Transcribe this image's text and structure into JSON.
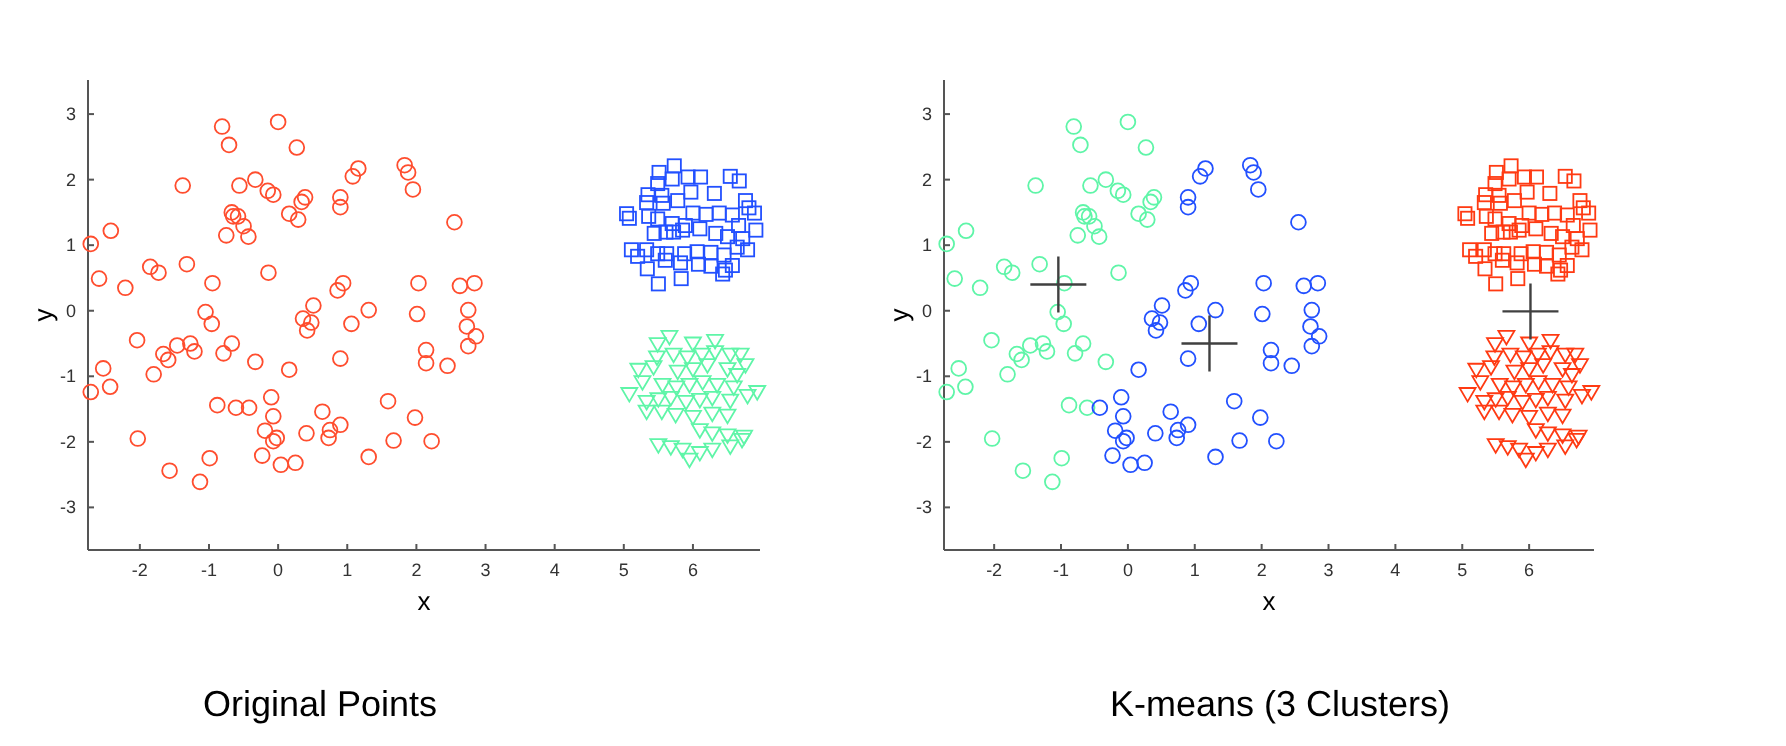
{
  "chart_data": [
    {
      "type": "scatter",
      "title": "Original Points",
      "xlabel": "x",
      "ylabel": "y",
      "xlim": [
        -2.75,
        6.97
      ],
      "ylim": [
        -3.65,
        3.52
      ],
      "xticks": [
        -2,
        -1,
        0,
        1,
        2,
        3,
        4,
        5,
        6
      ],
      "yticks": [
        -3,
        -2,
        -1,
        0,
        1,
        2,
        3
      ],
      "grid": false,
      "series": [
        {
          "marker": "circle",
          "color": "#ff4d2e",
          "x": [
            -0.81,
            0,
            -0.71,
            0.27,
            -1.38,
            -0.56,
            -0.33,
            -0.15,
            -0.07,
            0.39,
            0.34,
            0.9,
            0.9,
            1.08,
            1.16,
            1.83,
            1.88,
            1.95,
            2.55,
            0.16,
            0.29,
            -0.67,
            -0.65,
            -0.58,
            -0.5,
            -0.43,
            -0.75,
            -2.71,
            -2.42,
            -2.59,
            -2.21,
            -1.85,
            -1.73,
            -1.32,
            -0.95,
            -0.14,
            0.86,
            0.94,
            0.51,
            0.36,
            0.42,
            0.48,
            1.31,
            1.06,
            2.03,
            2.01,
            2.63,
            2.84,
            2.75,
            2.73,
            2.75,
            2.86,
            2.14,
            2.14,
            2.45,
            0.9,
            0.16,
            -0.33,
            -1.05,
            -0.96,
            -0.67,
            -0.79,
            -1.27,
            -1.21,
            -1.46,
            -1.66,
            -1.59,
            -1.8,
            -2.04,
            -2.53,
            -2.43,
            -2.71,
            -2.03,
            -1.57,
            -1.13,
            -0.99,
            -0.88,
            -0.61,
            -0.42,
            -0.1,
            -0.07,
            -0.19,
            -0.02,
            -0.07,
            -0.23,
            0.04,
            0.25,
            0.41,
            0.64,
            0.75,
            0.73,
            0.9,
            1.31,
            1.59,
            1.67,
            1.98,
            2.22
          ],
          "values": [
            2.81,
            2.88,
            2.53,
            2.49,
            1.91,
            1.91,
            2.0,
            1.83,
            1.77,
            1.73,
            1.66,
            1.73,
            1.58,
            2.05,
            2.17,
            2.22,
            2.11,
            1.85,
            1.35,
            1.48,
            1.39,
            1.5,
            1.44,
            1.44,
            1.29,
            1.13,
            1.15,
            1.02,
            1.22,
            0.49,
            0.35,
            0.67,
            0.58,
            0.71,
            0.42,
            0.58,
            0.31,
            0.42,
            0.08,
            -0.12,
            -0.3,
            -0.18,
            0.01,
            -0.2,
            0.42,
            -0.05,
            0.38,
            0.42,
            0.01,
            -0.24,
            -0.54,
            -0.39,
            -0.6,
            -0.8,
            -0.84,
            -0.73,
            -0.9,
            -0.78,
            -0.02,
            -0.2,
            -0.5,
            -0.65,
            -0.5,
            -0.62,
            -0.53,
            -0.66,
            -0.75,
            -0.97,
            -0.45,
            -0.88,
            -1.16,
            -1.24,
            -1.95,
            -2.44,
            -2.61,
            -2.25,
            -1.44,
            -1.48,
            -1.48,
            -1.32,
            -1.61,
            -1.83,
            -1.94,
            -1.99,
            -2.21,
            -2.35,
            -2.32,
            -1.87,
            -1.54,
            -1.82,
            -1.94,
            -1.74,
            -2.23,
            -1.38,
            -1.98,
            -1.63,
            -1.99
          ]
        },
        {
          "marker": "square",
          "color": "#2250ff",
          "x": [
            5.73,
            5.51,
            5.49,
            5.7,
            5.93,
            6.11,
            6.31,
            6.54,
            6.67,
            5.35,
            5.33,
            5.55,
            5.57,
            5.78,
            5.97,
            6.76,
            6.81,
            5.04,
            5.08,
            5.36,
            5.49,
            5.7,
            5.89,
            6.0,
            6.19,
            6.38,
            6.57,
            6.66,
            6.89,
            5.44,
            5.61,
            5.72,
            5.85,
            6.1,
            6.33,
            6.5,
            6.72,
            6.91,
            5.11,
            5.2,
            5.33,
            5.49,
            5.62,
            5.88,
            6.06,
            6.26,
            6.45,
            6.64,
            6.79,
            5.34,
            5.6,
            5.82,
            6.08,
            6.26,
            6.47,
            6.57,
            5.5,
            5.83,
            6.43
          ],
          "values": [
            2.21,
            2.11,
            1.94,
            2.01,
            2.04,
            2.04,
            1.79,
            2.05,
            1.98,
            1.77,
            1.65,
            1.76,
            1.64,
            1.68,
            1.81,
            1.68,
            1.57,
            1.48,
            1.41,
            1.44,
            1.4,
            1.33,
            1.3,
            1.49,
            1.47,
            1.49,
            1.46,
            1.3,
            1.49,
            1.18,
            1.2,
            1.2,
            1.23,
            1.25,
            1.18,
            1.13,
            1.1,
            1.23,
            0.93,
            0.83,
            0.93,
            0.87,
            0.87,
            0.87,
            0.9,
            0.89,
            0.85,
            0.97,
            0.93,
            0.64,
            0.77,
            0.73,
            0.71,
            0.68,
            0.62,
            0.69,
            0.41,
            0.49,
            0.56
          ]
        },
        {
          "marker": "triangle",
          "color": "#5ff5a8",
          "x": [
            5.66,
            5.49,
            6.0,
            6.32,
            5.48,
            5.72,
            5.92,
            6.13,
            6.32,
            6.54,
            6.69,
            5.21,
            5.43,
            5.78,
            6.0,
            6.21,
            6.5,
            6.64,
            6.76,
            5.08,
            5.27,
            5.56,
            5.76,
            5.95,
            6.14,
            6.35,
            6.59,
            6.79,
            6.93,
            5.33,
            5.5,
            5.68,
            5.9,
            6.1,
            6.28,
            6.54,
            5.33,
            5.55,
            5.75,
            6.0,
            6.28,
            6.5,
            6.1,
            6.28,
            6.5,
            6.74,
            5.5,
            5.68,
            5.85,
            6.1,
            6.28,
            6.54,
            6.71,
            5.95
          ],
          "values": [
            -0.4,
            -0.51,
            -0.5,
            -0.46,
            -0.71,
            -0.67,
            -0.71,
            -0.67,
            -0.63,
            -0.67,
            -0.67,
            -0.9,
            -0.86,
            -0.93,
            -0.89,
            -0.83,
            -0.89,
            -0.98,
            -0.83,
            -1.27,
            -1.09,
            -1.13,
            -1.17,
            -1.13,
            -1.09,
            -1.13,
            -1.17,
            -1.3,
            -1.24,
            -1.39,
            -1.35,
            -1.33,
            -1.39,
            -1.36,
            -1.33,
            -1.37,
            -1.54,
            -1.54,
            -1.59,
            -1.62,
            -1.57,
            -1.6,
            -1.82,
            -1.87,
            -1.9,
            -1.92,
            -2.05,
            -2.08,
            -2.12,
            -2.17,
            -2.12,
            -2.07,
            -1.97,
            -2.27
          ]
        }
      ]
    },
    {
      "type": "scatter",
      "title": "K-means (3 Clusters)",
      "xlabel": "x",
      "ylabel": "y",
      "xlim": [
        -2.75,
        6.97
      ],
      "ylim": [
        -3.65,
        3.52
      ],
      "xticks": [
        -2,
        -1,
        0,
        1,
        2,
        3,
        4,
        5,
        6
      ],
      "yticks": [
        -3,
        -2,
        -1,
        0,
        1,
        2,
        3
      ],
      "grid": false,
      "series": [
        {
          "marker": "circle",
          "color": "#5ff5a8",
          "x": [
            -0.81,
            0,
            -0.71,
            0.27,
            -1.38,
            -0.56,
            -0.33,
            -0.15,
            -0.07,
            0.39,
            0.34,
            0.16,
            0.29,
            -0.67,
            -0.65,
            -0.58,
            -0.5,
            -0.43,
            -0.75,
            -2.71,
            -2.42,
            -2.59,
            -2.21,
            -1.85,
            -1.73,
            -1.32,
            -0.95,
            -0.14,
            -0.33,
            -1.05,
            -0.96,
            -0.67,
            -0.79,
            -1.27,
            -1.21,
            -1.46,
            -1.66,
            -1.59,
            -1.8,
            -2.04,
            -2.53,
            -2.43,
            -2.71,
            -2.03,
            -1.57,
            -1.13,
            -0.99,
            -0.88,
            -0.61
          ],
          "values": [
            2.81,
            2.88,
            2.53,
            2.49,
            1.91,
            1.91,
            2.0,
            1.83,
            1.77,
            1.73,
            1.66,
            1.48,
            1.39,
            1.5,
            1.44,
            1.44,
            1.29,
            1.13,
            1.15,
            1.02,
            1.22,
            0.49,
            0.35,
            0.67,
            0.58,
            0.71,
            0.42,
            0.58,
            -0.78,
            -0.02,
            -0.2,
            -0.5,
            -0.65,
            -0.5,
            -0.62,
            -0.53,
            -0.66,
            -0.75,
            -0.97,
            -0.45,
            -0.88,
            -1.16,
            -1.24,
            -1.95,
            -2.44,
            -2.61,
            -2.25,
            -1.44,
            -1.48
          ]
        },
        {
          "marker": "circle",
          "color": "#2250ff",
          "x": [
            0.9,
            0.9,
            1.08,
            1.16,
            1.83,
            1.88,
            1.95,
            2.55,
            0.86,
            0.94,
            0.51,
            0.36,
            0.42,
            0.48,
            1.31,
            1.06,
            2.03,
            2.01,
            2.63,
            2.84,
            2.75,
            2.73,
            2.75,
            2.86,
            2.14,
            2.14,
            2.45,
            0.9,
            0.16,
            -0.42,
            -0.1,
            -0.07,
            -0.19,
            -0.02,
            -0.07,
            -0.23,
            0.04,
            0.25,
            0.41,
            0.64,
            0.75,
            0.73,
            0.9,
            1.31,
            1.59,
            1.67,
            1.98,
            2.22
          ],
          "values": [
            1.73,
            1.58,
            2.05,
            2.17,
            2.22,
            2.11,
            1.85,
            1.35,
            0.31,
            0.42,
            0.08,
            -0.12,
            -0.3,
            -0.18,
            0.01,
            -0.2,
            0.42,
            -0.05,
            0.38,
            0.42,
            0.01,
            -0.24,
            -0.54,
            -0.39,
            -0.6,
            -0.8,
            -0.84,
            -0.73,
            -0.9,
            -1.48,
            -1.32,
            -1.61,
            -1.83,
            -1.94,
            -1.99,
            -2.21,
            -2.35,
            -2.32,
            -1.87,
            -1.54,
            -1.82,
            -1.94,
            -1.74,
            -2.23,
            -1.38,
            -1.98,
            -1.63,
            -1.99
          ]
        },
        {
          "marker": "square",
          "color": "#ff3a12",
          "x": [
            5.73,
            5.51,
            5.49,
            5.7,
            5.93,
            6.11,
            6.31,
            6.54,
            6.67,
            5.35,
            5.33,
            5.55,
            5.57,
            5.78,
            5.97,
            6.76,
            6.81,
            5.04,
            5.08,
            5.36,
            5.49,
            5.7,
            5.89,
            6.0,
            6.19,
            6.38,
            6.57,
            6.66,
            6.89,
            5.44,
            5.61,
            5.72,
            5.85,
            6.1,
            6.33,
            6.5,
            6.72,
            6.91,
            5.11,
            5.2,
            5.33,
            5.49,
            5.62,
            5.88,
            6.06,
            6.26,
            6.45,
            6.64,
            6.79,
            5.34,
            5.6,
            5.82,
            6.08,
            6.26,
            6.47,
            6.57,
            5.5,
            5.83,
            6.43
          ],
          "values": [
            2.21,
            2.11,
            1.94,
            2.01,
            2.04,
            2.04,
            1.79,
            2.05,
            1.98,
            1.77,
            1.65,
            1.76,
            1.64,
            1.68,
            1.81,
            1.68,
            1.57,
            1.48,
            1.41,
            1.44,
            1.4,
            1.33,
            1.3,
            1.49,
            1.47,
            1.49,
            1.46,
            1.3,
            1.49,
            1.18,
            1.2,
            1.2,
            1.23,
            1.25,
            1.18,
            1.13,
            1.1,
            1.23,
            0.93,
            0.83,
            0.93,
            0.87,
            0.87,
            0.87,
            0.9,
            0.89,
            0.85,
            0.97,
            0.93,
            0.64,
            0.77,
            0.73,
            0.71,
            0.68,
            0.62,
            0.69,
            0.41,
            0.49,
            0.56
          ]
        },
        {
          "marker": "triangle",
          "color": "#ff3a12",
          "x": [
            5.66,
            5.49,
            6.0,
            6.32,
            5.48,
            5.72,
            5.92,
            6.13,
            6.32,
            6.54,
            6.69,
            5.21,
            5.43,
            5.78,
            6.0,
            6.21,
            6.5,
            6.64,
            6.76,
            5.08,
            5.27,
            5.56,
            5.76,
            5.95,
            6.14,
            6.35,
            6.59,
            6.79,
            6.93,
            5.33,
            5.5,
            5.68,
            5.9,
            6.1,
            6.28,
            6.54,
            5.33,
            5.55,
            5.75,
            6.0,
            6.28,
            6.5,
            6.1,
            6.28,
            6.5,
            6.74,
            5.5,
            5.68,
            5.85,
            6.1,
            6.28,
            6.54,
            6.71,
            5.95
          ],
          "values": [
            -0.4,
            -0.51,
            -0.5,
            -0.46,
            -0.71,
            -0.67,
            -0.71,
            -0.67,
            -0.63,
            -0.67,
            -0.67,
            -0.9,
            -0.86,
            -0.93,
            -0.89,
            -0.83,
            -0.89,
            -0.98,
            -0.83,
            -1.27,
            -1.09,
            -1.13,
            -1.17,
            -1.13,
            -1.09,
            -1.13,
            -1.17,
            -1.3,
            -1.24,
            -1.39,
            -1.35,
            -1.33,
            -1.39,
            -1.36,
            -1.33,
            -1.37,
            -1.54,
            -1.54,
            -1.59,
            -1.62,
            -1.57,
            -1.6,
            -1.82,
            -1.87,
            -1.9,
            -1.92,
            -2.05,
            -2.08,
            -2.12,
            -2.17,
            -2.12,
            -2.07,
            -1.97,
            -2.27
          ]
        },
        {
          "marker": "cross",
          "color": "#404040",
          "x": [
            -1.04,
            1.22,
            6.02
          ],
          "values": [
            0.4,
            -0.5,
            -0.01
          ]
        }
      ]
    }
  ]
}
